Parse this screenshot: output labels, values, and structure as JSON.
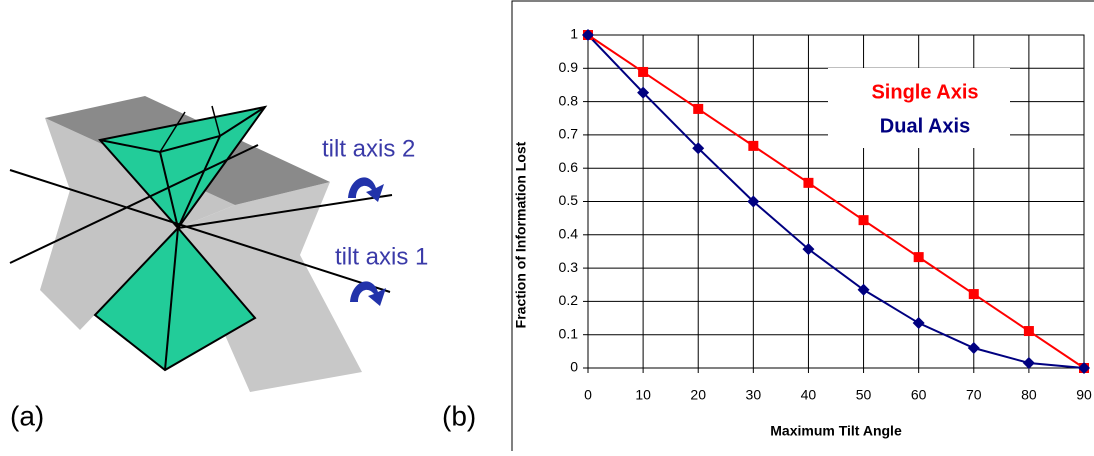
{
  "panel_labels": [
    "(a)",
    "(b)"
  ],
  "diagram": {
    "labels": [
      "tilt axis 2",
      "tilt axis 1"
    ]
  },
  "chart_data": {
    "type": "line",
    "x_label": "Maximum Tilt Angle",
    "y_label": "Fraction of Information Lost",
    "x": [
      0,
      10,
      20,
      30,
      40,
      50,
      60,
      70,
      80,
      90
    ],
    "series": [
      {
        "name": "Single Axis",
        "color": "#ff0000",
        "marker": "square",
        "values": [
          1,
          0.889,
          0.778,
          0.667,
          0.556,
          0.444,
          0.333,
          0.222,
          0.111,
          0
        ]
      },
      {
        "name": "Dual Axis",
        "color": "#000080",
        "marker": "diamond",
        "values": [
          1,
          0.827,
          0.66,
          0.5,
          0.357,
          0.235,
          0.135,
          0.06,
          0.015,
          0
        ]
      }
    ],
    "xlim": [
      0,
      90
    ],
    "xticks": [
      0,
      10,
      20,
      30,
      40,
      50,
      60,
      70,
      80,
      90
    ],
    "ylim": [
      0,
      1
    ],
    "yticks": [
      0,
      0.1,
      0.2,
      0.3,
      0.4,
      0.5,
      0.6,
      0.7,
      0.8,
      0.9,
      1
    ],
    "grid": true,
    "legend": "upper right"
  }
}
